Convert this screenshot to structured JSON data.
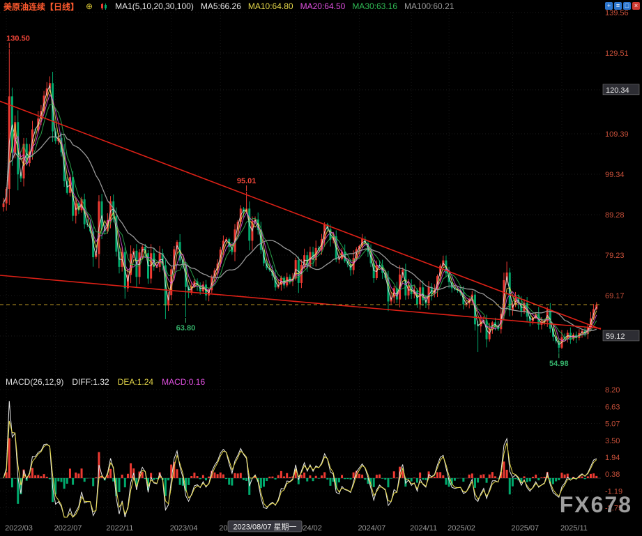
{
  "header": {
    "title": "美原油连续【日线】",
    "expand_glyph": "⊕",
    "ma_param": "MA1(5,10,20,30,100)",
    "ma_values": [
      {
        "label": "MA5:66.26",
        "color": "#e8e8e8"
      },
      {
        "label": "MA10:64.80",
        "color": "#e6d84a"
      },
      {
        "label": "MA20:64.50",
        "color": "#e050e0"
      },
      {
        "label": "MA30:63.16",
        "color": "#2fb954"
      },
      {
        "label": "MA100:60.21",
        "color": "#9a9a9a"
      }
    ]
  },
  "window_controls": [
    {
      "name": "zoom-icon",
      "glyph": "+"
    },
    {
      "name": "grid-icon",
      "glyph": "≡"
    },
    {
      "name": "new-window-icon",
      "glyph": "□"
    },
    {
      "name": "close-icon",
      "glyph": "×"
    }
  ],
  "macd_header": {
    "params": "MACD(26,12,9)",
    "diff": "DIFF:1.32",
    "dea": "DEA:1.24",
    "macd": "MACD:0.16"
  },
  "watermark": "FX678",
  "colors": {
    "up": "#ee3a32",
    "down": "#00a96c",
    "axis_text": "#c8503a",
    "date_text": "#9a9a9a",
    "trendline": "#dd2016",
    "last_price_line": "#c9a227",
    "diff_line": "#e8e8e8",
    "dea_line": "#e6d84a",
    "annotation_high": "#ef4538",
    "annotation_low": "#35b36b",
    "grid": "#1d1d1d"
  },
  "chart_data": {
    "type": "candlestick",
    "symbol": "美原油连续",
    "period": "日线",
    "y_axis": {
      "labels": [
        139.56,
        129.51,
        109.39,
        99.34,
        89.28,
        79.23,
        69.17
      ],
      "boxed_labels": [
        120.34,
        59.12
      ]
    },
    "x_axis": {
      "ticks": [
        {
          "label": "2022/03",
          "i": 1
        },
        {
          "label": "2022/07",
          "i": 18
        },
        {
          "label": "2022/11",
          "i": 36
        },
        {
          "label": "2023/04",
          "i": 58
        },
        {
          "label": "2023/08",
          "i": 75
        },
        {
          "label": "2024/02",
          "i": 101
        },
        {
          "label": "2024/07",
          "i": 123
        },
        {
          "label": "2024/11",
          "i": 141
        },
        {
          "label": "2025/02",
          "i": 154
        },
        {
          "label": "2025/07",
          "i": 176
        },
        {
          "label": "2025/11",
          "i": 193
        }
      ],
      "crosshair": {
        "label": "2023/08/07 星期一",
        "i": 76
      }
    },
    "closes": [
      92.1,
      95.7,
      118.7,
      104.7,
      112.3,
      99.3,
      98.3,
      106.9,
      102.1,
      105.0,
      110.5,
      110.3,
      113.2,
      115.1,
      118.9,
      120.7,
      122.0,
      110.0,
      107.6,
      108.4,
      104.8,
      97.6,
      94.7,
      98.6,
      89.0,
      92.1,
      90.4,
      93.1,
      86.9,
      86.8,
      85.1,
      78.7,
      79.5,
      92.6,
      85.6,
      85.1,
      87.9,
      92.6,
      88.9,
      80.1,
      76.3,
      80.0,
      71.0,
      74.3,
      79.6,
      80.3,
      73.8,
      79.9,
      81.3,
      79.7,
      73.4,
      79.7,
      76.3,
      76.3,
      79.7,
      76.7,
      66.7,
      69.3,
      75.7,
      80.7,
      82.5,
      77.9,
      76.8,
      71.3,
      70.0,
      71.5,
      72.7,
      71.7,
      70.2,
      71.9,
      69.2,
      70.5,
      73.9,
      75.4,
      77.1,
      80.6,
      82.8,
      83.2,
      81.3,
      80.0,
      85.6,
      87.5,
      90.8,
      90.0,
      90.8,
      82.8,
      87.7,
      88.1,
      85.5,
      80.5,
      77.2,
      76.0,
      75.5,
      74.1,
      71.2,
      71.8,
      73.6,
      71.7,
      73.8,
      72.7,
      73.4,
      78.0,
      72.3,
      76.8,
      79.2,
      76.5,
      80.0,
      78.0,
      81.0,
      80.6,
      83.2,
      86.9,
      85.7,
      83.1,
      83.9,
      78.1,
      78.3,
      80.1,
      77.7,
      76.9,
      75.5,
      78.5,
      80.7,
      81.5,
      83.2,
      82.2,
      80.1,
      77.2,
      73.5,
      76.8,
      76.7,
      74.8,
      73.6,
      67.7,
      68.7,
      71.0,
      68.2,
      74.4,
      75.6,
      69.2,
      71.8,
      69.5,
      70.4,
      67.0,
      71.2,
      68.0,
      67.2,
      71.3,
      69.5,
      70.6,
      74.0,
      76.6,
      77.9,
      74.7,
      72.5,
      71.0,
      70.7,
      70.4,
      69.8,
      67.0,
      67.2,
      68.3,
      69.4,
      62.0,
      61.5,
      63.0,
      63.0,
      58.3,
      61.0,
      62.5,
      61.5,
      60.8,
      64.6,
      73.0,
      74.9,
      65.5,
      67.0,
      68.5,
      67.3,
      65.2,
      67.3,
      63.9,
      62.8,
      63.7,
      64.6,
      61.9,
      62.7,
      62.7,
      65.7,
      60.9,
      58.9,
      57.8,
      56.2,
      58.8,
      58.5,
      59.9,
      58.3,
      59.4,
      58.6,
      59.8,
      60.4,
      59.6,
      61.2,
      63.5,
      65.8,
      66.9
    ],
    "overrides": {
      "2": {
        "high": 130.5
      },
      "16": {
        "high": 123.7
      },
      "63": {
        "low": 63.8
      },
      "84": {
        "high": 95.01
      },
      "164": {
        "low": 55.12
      },
      "174": {
        "high": 77.6
      },
      "192": {
        "low": 54.98
      }
    },
    "annotations": [
      {
        "text": "130.50",
        "i": 2,
        "kind": "high"
      },
      {
        "text": "95.01",
        "i": 84,
        "kind": "high"
      },
      {
        "text": "63.80",
        "i": 63,
        "kind": "low"
      },
      {
        "text": "54.98",
        "i": 192,
        "kind": "low"
      }
    ],
    "trendlines": [
      {
        "p_start": 117.5,
        "p_end": 60.8
      },
      {
        "p_start": 74.2,
        "p_end": 61.0
      }
    ],
    "last_price": 66.9,
    "macd_axis_labels": [
      8.2,
      6.63,
      5.07,
      3.5,
      1.94,
      0.38,
      -1.19,
      -2.75
    ]
  }
}
